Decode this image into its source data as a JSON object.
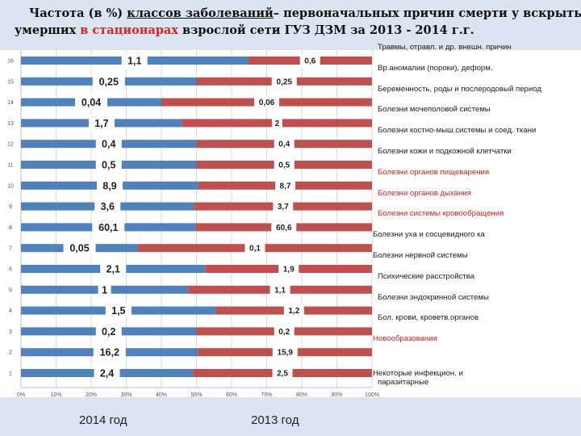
{
  "title": {
    "part1": "Частота (в %) ",
    "part2_underlined": "классов заболеваний",
    "part3": "– первоначальных причин смерти у вскрытых",
    "part4": "умерших ",
    "part5_red": "в стационарах",
    "part6": " взрослой сети ГУЗ ДЗМ  за 2013 - 2014 г.г."
  },
  "footer": {
    "year_left": "2014 год",
    "year_right": "2013 год"
  },
  "colors": {
    "series_2014": "#4f81bd",
    "series_2013": "#c0504d",
    "legend_default": "#1a1a1a",
    "legend_highlight": "#d0201a"
  },
  "chart_data": {
    "type": "bar",
    "orientation": "horizontal",
    "stacked": "100%",
    "x_ticks": [
      "0%",
      "10%",
      "20%",
      "30%",
      "40%",
      "50%",
      "60%",
      "70%",
      "80%",
      "90%",
      "100%"
    ],
    "xlim": [
      0,
      100
    ],
    "categories": [
      "1",
      "2",
      "3",
      "4",
      "5",
      "6",
      "7",
      "8",
      "9",
      "10",
      "11",
      "12",
      "13",
      "14",
      "15",
      "16"
    ],
    "series": [
      {
        "name": "2014 год",
        "values": [
          2.4,
          16.2,
          0.2,
          1.5,
          1,
          2.1,
          0.05,
          60.1,
          3.6,
          8.9,
          0.5,
          0.4,
          1.7,
          0.04,
          0.25,
          1.1
        ],
        "labels": [
          "2,4",
          "16,2",
          "0,2",
          "1,5",
          "1",
          "2,1",
          "0,05",
          "60,1",
          "3,6",
          "8,9",
          "0,5",
          "0,4",
          "1,7",
          "0,04",
          "0,25",
          "1,1"
        ]
      },
      {
        "name": "2013 год",
        "values": [
          2.5,
          15.9,
          0.2,
          1.2,
          1.1,
          1.9,
          0.1,
          60.6,
          3.7,
          8.7,
          0.5,
          0.4,
          2,
          0.06,
          0.25,
          0.6
        ],
        "labels": [
          "2,5",
          "15,9",
          "0,2",
          "1,2",
          "1,1",
          "1,9",
          "0,1",
          "60,6",
          "3,7",
          "8,7",
          "0,5",
          "0,4",
          "2",
          "0,06",
          "0,25",
          "0,6"
        ]
      }
    ],
    "legend": [
      {
        "text": "Некоторые инфекцион. и паразитарные",
        "lines": [
          "Некоторые инфекцион. и",
          "паразитарные"
        ],
        "highlight": false
      },
      {
        "text": "Новообразования",
        "lines": [
          "Новообразования"
        ],
        "highlight": true
      },
      {
        "text": "Бол. крови, кроветв.органов",
        "lines": [
          "Бол. крови, кроветв.органов"
        ],
        "highlight": false
      },
      {
        "text": "Болезни эндокринной системы",
        "lines": [
          "Болезни эндокринной системы"
        ],
        "highlight": false
      },
      {
        "text": "Психические расстройства",
        "lines": [
          "Психические расстройства"
        ],
        "highlight": false
      },
      {
        "text": "Болезни нервной системы",
        "lines": [
          "Болезни нервной системы"
        ],
        "highlight": false
      },
      {
        "text": "Болезни уха и сосцевидного ка",
        "lines": [
          "Болезни уха и сосцевидного ка"
        ],
        "highlight": false
      },
      {
        "text": "Болезни системы кровообращения",
        "lines": [
          "Болезни системы кровообращения"
        ],
        "highlight": true
      },
      {
        "text": "Болезни органов дыхания",
        "lines": [
          "Болезни органов дыхания"
        ],
        "highlight": true
      },
      {
        "text": "Болезни органов пищеварения",
        "lines": [
          "Болезни органов пищеварения"
        ],
        "highlight": true
      },
      {
        "text": "Болезни кожи и подкожной клетчатки",
        "lines": [
          "Болезни кожи и подкожной клетчатки"
        ],
        "highlight": false
      },
      {
        "text": "Болезни костно-мыш.системы и соед. ткани",
        "lines": [
          "Болезни костно-мыш.системы и соед. ткани"
        ],
        "highlight": false
      },
      {
        "text": "Болезни мочеполовой системы",
        "lines": [
          "Болезни мочеполовой системы"
        ],
        "highlight": false
      },
      {
        "text": "Беременность, роды и послеродовый период",
        "lines": [
          "Беременность, роды и послеродовый период"
        ],
        "highlight": false
      },
      {
        "text": "Вр.аномалии (пороки), деформ.",
        "lines": [
          "Вр.аномалии (пороки), деформ."
        ],
        "highlight": false
      },
      {
        "text": "Травмы, отравл. и др. внешн. причин",
        "lines": [
          "Травмы, отравл. и др. внешн. причин"
        ],
        "highlight": false
      }
    ]
  }
}
